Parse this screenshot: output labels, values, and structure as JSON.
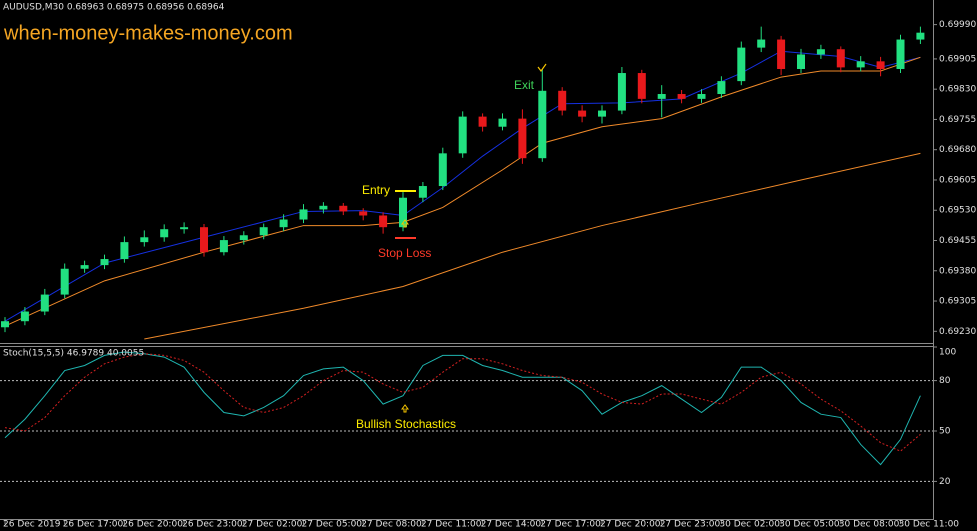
{
  "chart_data": [
    {
      "type": "candlestick",
      "title": "AUDUSD,M30  0.68963 0.68975 0.68956 0.68964",
      "watermark": "when-money-makes-money.com",
      "open": [
        0.6924,
        0.69255,
        0.69279,
        0.69321,
        0.69385,
        0.69394,
        0.69409,
        0.69451,
        0.69463,
        0.69483,
        0.69488,
        0.69426,
        0.69456,
        0.69468,
        0.69488,
        0.69507,
        0.69532,
        0.69541,
        0.69527,
        0.69517,
        0.69488,
        0.69561,
        0.6959,
        0.69671,
        0.69762,
        0.69737,
        0.69757,
        0.69659,
        0.69826,
        0.69777,
        0.69762,
        0.69777,
        0.6987,
        0.69806,
        0.69818,
        0.69806,
        0.69818,
        0.6985,
        0.69933,
        0.69953,
        0.6988,
        0.69916,
        0.69929,
        0.69884,
        0.69899,
        0.6988,
        0.69953
      ],
      "high": [
        0.69265,
        0.6929,
        0.69335,
        0.69398,
        0.69405,
        0.6942,
        0.69465,
        0.6948,
        0.69495,
        0.695,
        0.69496,
        0.69466,
        0.69478,
        0.69497,
        0.6952,
        0.69545,
        0.6955,
        0.69548,
        0.69535,
        0.69525,
        0.69575,
        0.696,
        0.69685,
        0.69775,
        0.6977,
        0.6977,
        0.6978,
        0.6988,
        0.69835,
        0.6979,
        0.6979,
        0.69885,
        0.69878,
        0.6984,
        0.69828,
        0.6983,
        0.69862,
        0.69948,
        0.69985,
        0.69962,
        0.6993,
        0.6994,
        0.69936,
        0.69912,
        0.6991,
        0.69965,
        0.69985
      ],
      "low": [
        0.69228,
        0.69245,
        0.6927,
        0.69312,
        0.69375,
        0.69384,
        0.694,
        0.6944,
        0.69452,
        0.69472,
        0.69415,
        0.69418,
        0.69445,
        0.69458,
        0.69478,
        0.69498,
        0.69522,
        0.69518,
        0.69505,
        0.69472,
        0.69478,
        0.6955,
        0.6958,
        0.6966,
        0.69725,
        0.69728,
        0.69645,
        0.6965,
        0.69765,
        0.69748,
        0.69745,
        0.69768,
        0.69795,
        0.6976,
        0.69795,
        0.69796,
        0.69808,
        0.6984,
        0.69922,
        0.69865,
        0.6987,
        0.69905,
        0.69872,
        0.69874,
        0.69862,
        0.6987,
        0.69942
      ],
      "close": [
        0.69255,
        0.69279,
        0.69321,
        0.69385,
        0.69394,
        0.69409,
        0.69451,
        0.69463,
        0.69483,
        0.69488,
        0.69426,
        0.69456,
        0.69468,
        0.69488,
        0.69507,
        0.69532,
        0.69541,
        0.69527,
        0.69517,
        0.69488,
        0.69561,
        0.6959,
        0.69671,
        0.69762,
        0.69737,
        0.69757,
        0.69659,
        0.69826,
        0.69777,
        0.69762,
        0.69777,
        0.6987,
        0.69806,
        0.69818,
        0.69806,
        0.69818,
        0.6985,
        0.69933,
        0.69953,
        0.6988,
        0.69916,
        0.69929,
        0.69884,
        0.69899,
        0.6988,
        0.69953,
        0.6997
      ],
      "up_color": "#22e081",
      "down_color": "#e8191c",
      "overlays": [
        {
          "color": "#1530e0",
          "x": [
            0,
            5,
            10,
            15,
            18,
            20,
            22,
            24,
            26,
            28,
            31,
            34,
            37,
            39,
            42,
            44,
            46
          ],
          "values": [
            0.69255,
            0.69399,
            0.69463,
            0.69527,
            0.69529,
            0.69517,
            0.69586,
            0.69664,
            0.69733,
            0.69794,
            0.69796,
            0.69806,
            0.6987,
            0.69924,
            0.69911,
            0.69884,
            0.69909
          ]
        },
        {
          "color": "#f08a2a",
          "x": [
            0,
            5,
            10,
            15,
            18,
            20,
            22,
            25,
            27,
            30,
            33,
            36,
            39,
            41,
            44,
            46
          ],
          "values": [
            0.69243,
            0.69355,
            0.69426,
            0.69492,
            0.69492,
            0.695,
            0.69537,
            0.6963,
            0.69696,
            0.69737,
            0.69757,
            0.69811,
            0.6986,
            0.69875,
            0.69875,
            0.69909
          ]
        },
        {
          "color": "#f08a2a",
          "x": [
            7,
            15,
            20,
            25,
            30,
            35,
            40,
            46
          ],
          "values": [
            0.69211,
            0.69287,
            0.69341,
            0.69426,
            0.69492,
            0.69549,
            0.69605,
            0.69671
          ]
        }
      ],
      "ylim": [
        0.69201,
        0.70051
      ],
      "yticks": [
        {
          "value": 0.6999,
          "label": "0.69990"
        },
        0.69905,
        {
          "value": 0.6983,
          "label": "0.69830"
        },
        0.69755,
        {
          "value": 0.6968,
          "label": "0.69680"
        },
        0.69605,
        {
          "value": 0.6953,
          "label": "0.69530"
        },
        0.69455,
        {
          "value": 0.6938,
          "label": "0.69380"
        },
        0.69305,
        {
          "value": 0.6923,
          "label": "0.69230"
        }
      ],
      "xticks": [
        {
          "value": 0,
          "label": "26 Dec 2019"
        },
        {
          "value": 3,
          "label": "26 Dec 17:00"
        },
        {
          "value": 6,
          "label": "26 Dec 20:00"
        },
        {
          "value": 9,
          "label": "26 Dec 23:00"
        },
        {
          "value": 12,
          "label": "27 Dec 02:00"
        },
        {
          "value": 15,
          "label": "27 Dec 05:00"
        },
        {
          "value": 18,
          "label": "27 Dec 08:00"
        },
        {
          "value": 21,
          "label": "27 Dec 11:00"
        },
        {
          "value": 24,
          "label": "27 Dec 14:00"
        },
        {
          "value": 27,
          "label": "27 Dec 17:00"
        },
        {
          "value": 30,
          "label": "27 Dec 20:00"
        },
        {
          "value": 33,
          "label": "27 Dec 23:00"
        },
        {
          "value": 36,
          "label": "30 Dec 02:00"
        },
        {
          "value": 39,
          "label": "30 Dec 05:00"
        },
        {
          "value": 42,
          "label": "30 Dec 08:00"
        },
        {
          "value": 45,
          "label": "30 Dec 11:00"
        }
      ],
      "annotations": [
        "Entry",
        "Stop Loss",
        "Exit"
      ]
    },
    {
      "type": "line",
      "title": "Stoch(15,5,5) 46.9789 40.0055",
      "series": [
        {
          "color": "#1fb5b0",
          "dash": false,
          "values": [
            46,
            57,
            71,
            86,
            89,
            95,
            97,
            96,
            94,
            88,
            73,
            61,
            59,
            64,
            71,
            83,
            87,
            88,
            80,
            66,
            71,
            89,
            95,
            95,
            89,
            86,
            82,
            82,
            82,
            74,
            60,
            67,
            71,
            77,
            69,
            61,
            70,
            88,
            88,
            80,
            67,
            60,
            58,
            42,
            30,
            45,
            71
          ]
        },
        {
          "color": "#d42020",
          "dash": true,
          "values": [
            52,
            50,
            58,
            71,
            82,
            90,
            94,
            96,
            95,
            92,
            85,
            74,
            64,
            61,
            64,
            71,
            80,
            86,
            85,
            78,
            73,
            76,
            85,
            93,
            93,
            90,
            86,
            83,
            82,
            79,
            72,
            67,
            66,
            72,
            72,
            69,
            66,
            73,
            82,
            85,
            78,
            69,
            62,
            53,
            43,
            38,
            48
          ]
        }
      ],
      "ylim": [
        0,
        100
      ],
      "yticks": [
        100,
        80,
        50,
        20
      ],
      "annotation": "Bullish Stochastics"
    }
  ]
}
